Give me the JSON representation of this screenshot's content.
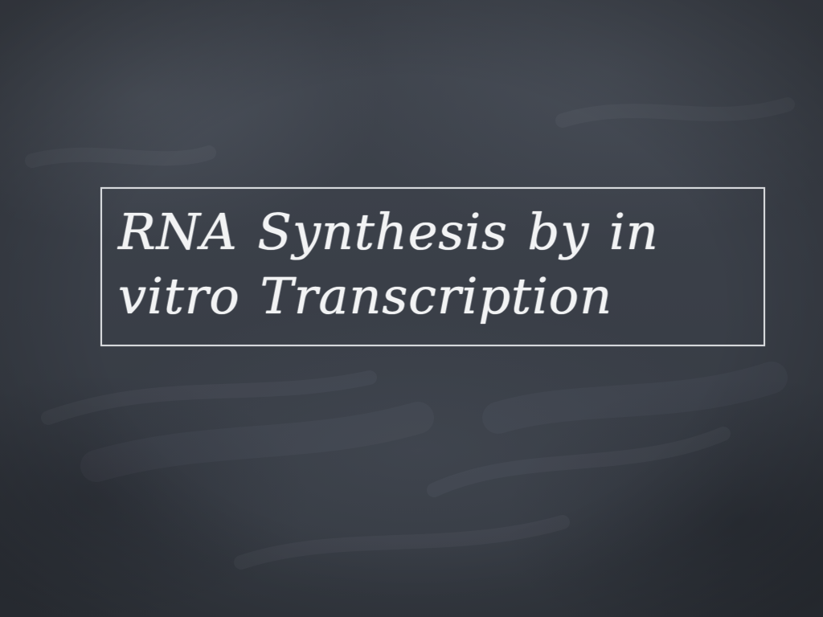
{
  "slide": {
    "title": "RNA Synthesis by in vitro Transcription",
    "background_color": "#3b4049",
    "text_color": "#f2f3f4",
    "theme": "chalkboard"
  }
}
